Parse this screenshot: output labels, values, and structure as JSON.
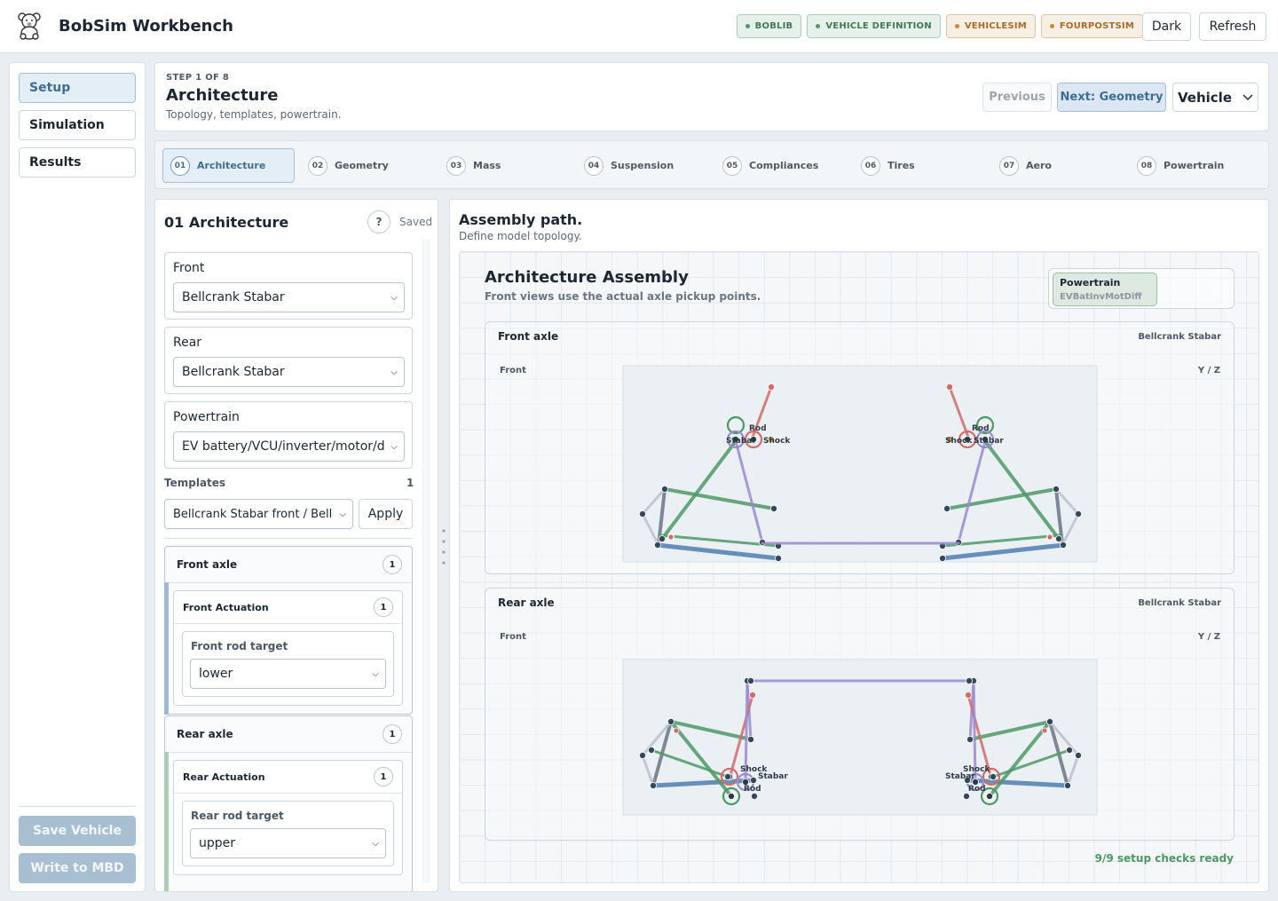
{
  "app": {
    "title": "BobSim Workbench",
    "badges": [
      {
        "label": "BOBLIB",
        "tone": "green"
      },
      {
        "label": "VEHICLE DEFINITION",
        "tone": "green"
      },
      {
        "label": "VEHICLESIM",
        "tone": "orange"
      },
      {
        "label": "FOURPOSTSIM",
        "tone": "orange"
      }
    ],
    "theme_button": "Dark",
    "refresh_button": "Refresh"
  },
  "nav": {
    "items": [
      {
        "label": "Setup",
        "active": true
      },
      {
        "label": "Simulation",
        "active": false
      },
      {
        "label": "Results",
        "active": false
      }
    ],
    "save_button": "Save Vehicle",
    "write_button": "Write to MBD"
  },
  "step": {
    "label": "STEP 1 OF 8",
    "title": "Architecture",
    "subtitle": "Topology, templates, powertrain.",
    "previous": "Previous",
    "next": "Next: Geometry",
    "scope": "Vehicle"
  },
  "tabs": [
    {
      "num": "01",
      "label": "Architecture",
      "active": true
    },
    {
      "num": "02",
      "label": "Geometry"
    },
    {
      "num": "03",
      "label": "Mass"
    },
    {
      "num": "04",
      "label": "Suspension"
    },
    {
      "num": "05",
      "label": "Compliances"
    },
    {
      "num": "06",
      "label": "Tires"
    },
    {
      "num": "07",
      "label": "Aero"
    },
    {
      "num": "08",
      "label": "Powertrain"
    }
  ],
  "form": {
    "title": "01 Architecture",
    "help": "?",
    "status": "Saved",
    "front": {
      "label": "Front",
      "value": "Bellcrank Stabar"
    },
    "rear": {
      "label": "Rear",
      "value": "Bellcrank Stabar"
    },
    "powertrain": {
      "label": "Powertrain",
      "value": "EV battery/VCU/inverter/motor/differential"
    },
    "templates": {
      "label": "Templates",
      "count": "1",
      "value": "Bellcrank Stabar front / Bellcrank Stabar rear",
      "apply": "Apply"
    },
    "front_axle": {
      "title": "Front axle",
      "count": "1",
      "actuation": {
        "title": "Front Actuation",
        "count": "1",
        "field_label": "Front rod target",
        "value": "lower"
      }
    },
    "rear_axle": {
      "title": "Rear axle",
      "count": "1",
      "actuation": {
        "title": "Rear Actuation",
        "count": "1",
        "field_label": "Rear rod target",
        "value": "upper"
      }
    }
  },
  "assembly": {
    "title": "Assembly path.",
    "subtitle": "Define model topology.",
    "canvas_title": "Architecture Assembly",
    "canvas_subtitle": "Front views use the actual axle pickup points.",
    "powertrain_label": "Powertrain",
    "powertrain_value": "EVBatInvMotDiff",
    "front_axle": {
      "title": "Front axle",
      "type": "Bellcrank Stabar",
      "view": "Front",
      "axes": "Y / Z"
    },
    "rear_axle": {
      "title": "Rear axle",
      "type": "Bellcrank Stabar",
      "view": "Front",
      "axes": "Y / Z"
    },
    "labels": {
      "rod": "Rod",
      "stabar": "Stabar",
      "shock": "Shock"
    },
    "ready": "9/9 setup checks ready",
    "colors": {
      "rod": "#d46a6a",
      "shock": "#d46a6a",
      "stabar": "#9a8ad0",
      "control_arm": "#4d9966",
      "lower_arm": "#4f7fb0",
      "upright": "#6b7682"
    }
  }
}
